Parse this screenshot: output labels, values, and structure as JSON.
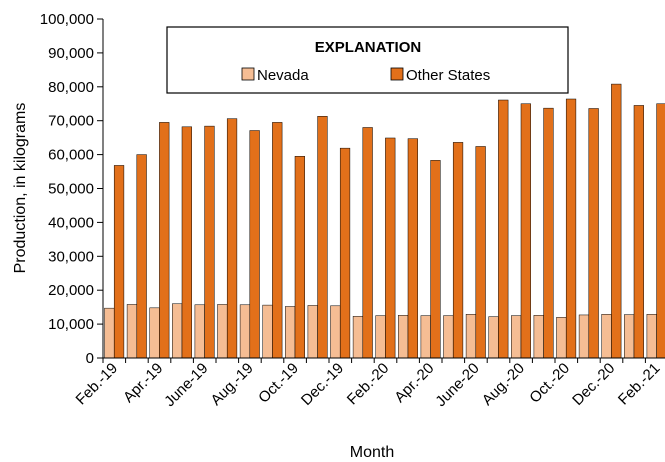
{
  "chart_data": {
    "type": "bar",
    "xlabel": "Month",
    "ylabel": "Production, in kilograms",
    "ylim": [
      0,
      100000
    ],
    "yticks": [
      0,
      10000,
      20000,
      30000,
      40000,
      50000,
      60000,
      70000,
      80000,
      90000,
      100000
    ],
    "ytick_labels": [
      "0",
      "10,000",
      "20,000",
      "30,000",
      "40,000",
      "50,000",
      "60,000",
      "70,000",
      "80,000",
      "90,000",
      "100,000"
    ],
    "categories": [
      "Feb.-19",
      "Mar.-19",
      "Apr.-19",
      "May-19",
      "June-19",
      "July-19",
      "Aug.-19",
      "Sep.-19",
      "Oct.-19",
      "Nov.-19",
      "Dec.-19",
      "Jan.-20",
      "Feb.-20",
      "Mar.-20",
      "Apr.-20",
      "May-20",
      "June-20",
      "July-20",
      "Aug.-20",
      "Sep.-20",
      "Oct.-20",
      "Nov.-20",
      "Dec.-20",
      "Jan.-21",
      "Feb.-21"
    ],
    "visible_x_labels": [
      "Feb.-19",
      "Apr.-19",
      "June-19",
      "Aug.-19",
      "Oct.-19",
      "Dec.-19",
      "Feb.-20",
      "Apr.-20",
      "June-20",
      "Aug.-20",
      "Oct.-20",
      "Dec.-20",
      "Feb.-21"
    ],
    "series": [
      {
        "name": "Nevada",
        "color": "#f5bd94",
        "values": [
          14700,
          15800,
          14800,
          16000,
          15700,
          15800,
          15700,
          15600,
          15200,
          15500,
          15400,
          12300,
          12500,
          12600,
          12500,
          12500,
          12900,
          12200,
          12500,
          12600,
          12000,
          12700,
          12900,
          12800,
          12900
        ]
      },
      {
        "name": "Other States",
        "color": "#e2701a",
        "values": [
          56800,
          60000,
          69500,
          68200,
          68400,
          70600,
          67100,
          69500,
          59500,
          71300,
          61900,
          68000,
          64900,
          64700,
          58300,
          63600,
          62400,
          76100,
          75000,
          73700,
          76400,
          73600,
          80800,
          74500,
          75000
        ]
      }
    ],
    "legend": {
      "title": "EXPLANATION",
      "placement": "top-center"
    },
    "grid": false
  }
}
